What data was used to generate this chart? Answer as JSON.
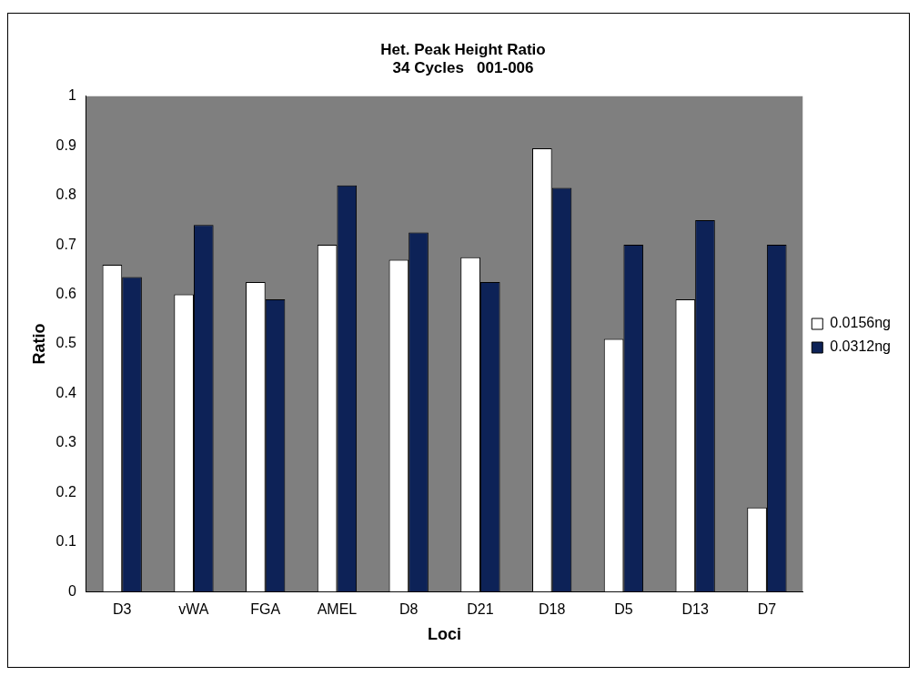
{
  "chart_data": {
    "type": "bar",
    "title": "Het. Peak Height Ratio\n34 Cycles   001-006",
    "xlabel": "Loci",
    "ylabel": "Ratio",
    "categories": [
      "D3",
      "vWA",
      "FGA",
      "AMEL",
      "D8",
      "D21",
      "D18",
      "D5",
      "D13",
      "D7"
    ],
    "series": [
      {
        "name": "0.0156ng",
        "color": "#ffffff",
        "values": [
          0.66,
          0.6,
          0.625,
          0.7,
          0.67,
          0.675,
          0.895,
          0.51,
          0.59,
          0.17
        ]
      },
      {
        "name": "0.0312ng",
        "color": "#0d2257",
        "values": [
          0.635,
          0.74,
          0.59,
          0.82,
          0.725,
          0.625,
          0.815,
          0.7,
          0.75,
          0.7
        ]
      }
    ],
    "ylim": [
      0,
      1
    ],
    "yticks": [
      0,
      0.1,
      0.2,
      0.3,
      0.4,
      0.5,
      0.6,
      0.7,
      0.8,
      0.9,
      1
    ],
    "grid": false,
    "legend": "right"
  }
}
